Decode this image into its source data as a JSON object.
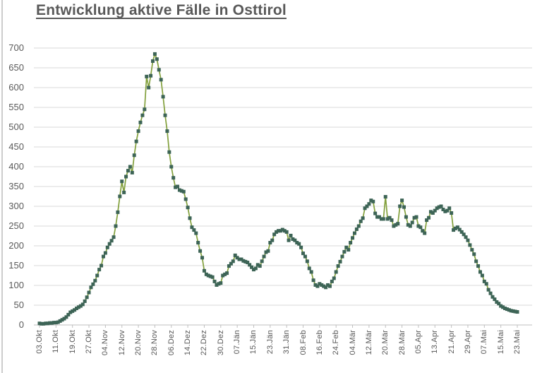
{
  "title": "Entwicklung aktive Fälle in Osttirol",
  "chart_data": {
    "type": "line",
    "title": "Entwicklung aktive Fälle in Osttirol",
    "xlabel": "",
    "ylabel": "",
    "grid": true,
    "legend": false,
    "ylim": [
      0,
      700
    ],
    "y_tick_step": 50,
    "y_ticks": [
      0,
      50,
      100,
      150,
      200,
      250,
      300,
      350,
      400,
      450,
      500,
      550,
      600,
      650,
      700
    ],
    "x_tick_labels": [
      "03.Okt",
      "11.Okt",
      "19.Okt",
      "27.Okt",
      "04.Nov",
      "12.Nov",
      "20.Nov",
      "28.Nov",
      "06.Dez",
      "14.Dez",
      "22.Dez",
      "30.Dez",
      "07.Jän",
      "15.Jän",
      "23.Jän",
      "31.Jän",
      "08.Feb",
      "16.Feb",
      "24.Feb",
      "04.Mär",
      "12.Mär",
      "20.Mär",
      "28.Mär",
      "05.Apr",
      "13.Apr",
      "21.Apr",
      "29.Apr",
      "07.Mai",
      "15.Mai",
      "23.Mai"
    ],
    "x_tick_interval_days": 8,
    "x_is_daily": true,
    "series": [
      {
        "name": "aktive Fälle",
        "start_label": "03.Okt",
        "end_label": "23.Mai",
        "values": [
          4,
          3,
          3,
          4,
          4,
          5,
          5,
          6,
          6,
          7,
          10,
          13,
          16,
          20,
          26,
          32,
          35,
          38,
          42,
          45,
          48,
          52,
          60,
          70,
          82,
          95,
          103,
          112,
          125,
          140,
          150,
          173,
          182,
          196,
          205,
          213,
          222,
          250,
          285,
          325,
          363,
          335,
          375,
          390,
          400,
          385,
          429,
          464,
          490,
          512,
          530,
          545,
          628,
          600,
          630,
          667,
          685,
          672,
          645,
          620,
          577,
          530,
          490,
          437,
          400,
          372,
          348,
          350,
          341,
          339,
          337,
          318,
          297,
          270,
          247,
          240,
          232,
          208,
          187,
          170,
          137,
          128,
          125,
          123,
          121,
          110,
          101,
          104,
          106,
          125,
          128,
          131,
          149,
          155,
          161,
          176,
          170,
          166,
          166,
          162,
          160,
          158,
          152,
          146,
          140,
          143,
          152,
          149,
          161,
          173,
          184,
          187,
          208,
          214,
          229,
          235,
          238,
          238,
          241,
          238,
          235,
          214,
          226,
          217,
          214,
          208,
          205,
          196,
          181,
          173,
          161,
          143,
          134,
          113,
          101,
          98,
          104,
          101,
          98,
          95,
          101,
          98,
          110,
          118,
          134,
          149,
          160,
          173,
          185,
          196,
          190,
          208,
          220,
          232,
          242,
          250,
          262,
          270,
          295,
          300,
          306,
          315,
          312,
          282,
          273,
          273,
          268,
          268,
          324,
          268,
          271,
          265,
          250,
          253,
          256,
          300,
          315,
          298,
          273,
          253,
          250,
          259,
          271,
          273,
          250,
          247,
          238,
          232,
          265,
          271,
          286,
          283,
          289,
          295,
          298,
          300,
          292,
          287,
          289,
          295,
          283,
          240,
          244,
          247,
          241,
          235,
          229,
          222,
          214,
          202,
          190,
          179,
          161,
          149,
          134,
          125,
          110,
          104,
          89,
          80,
          71,
          65,
          58,
          54,
          48,
          45,
          42,
          40,
          38,
          36,
          35,
          34,
          33
        ]
      }
    ],
    "colors": {
      "line": "#82a03c",
      "marker": "#3d6456",
      "gridline": "#d9d9d9",
      "axis": "#bfbfbf",
      "text": "#595959",
      "title": "#595959",
      "background": "#ffffff"
    }
  }
}
